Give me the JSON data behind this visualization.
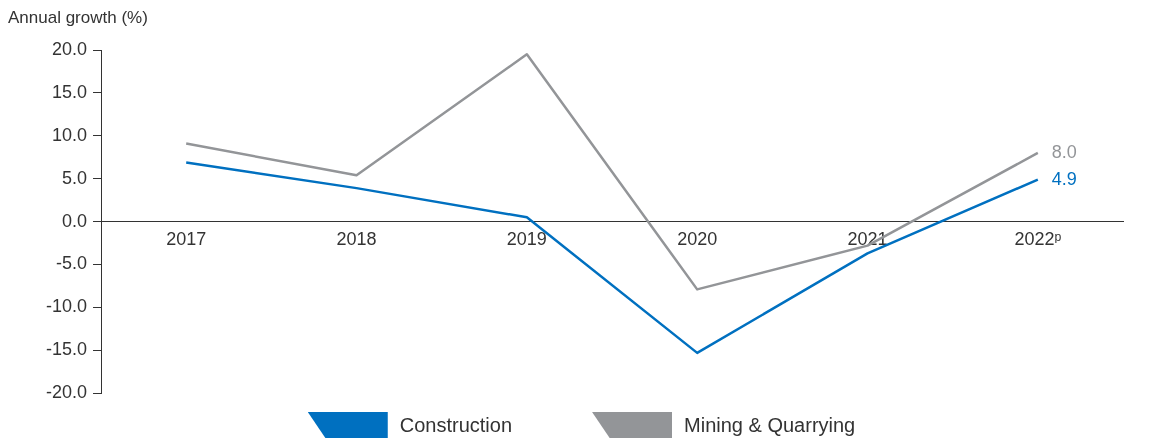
{
  "chart_data": {
    "type": "line",
    "ylabel": "Annual growth (%)",
    "categories": [
      "2017",
      "2018",
      "2019",
      "2020",
      "2021",
      "2022ᵖ"
    ],
    "series": [
      {
        "name": "Construction",
        "color": "#0070c0",
        "values": [
          6.9,
          3.9,
          0.5,
          -15.3,
          -3.7,
          4.9
        ],
        "value_labels": [
          null,
          null,
          null,
          null,
          null,
          "4.9"
        ]
      },
      {
        "name": "Mining & Quarrying",
        "color": "#939598",
        "values": [
          9.1,
          5.4,
          19.5,
          -7.9,
          -2.8,
          8.0
        ],
        "value_labels": [
          null,
          null,
          null,
          null,
          null,
          "8.0"
        ]
      }
    ],
    "ylim": [
      -20,
      20
    ],
    "yticks": [
      {
        "value": -20,
        "label": "-20.0"
      },
      {
        "value": -15,
        "label": "-15.0"
      },
      {
        "value": -10,
        "label": "-10.0"
      },
      {
        "value": -5,
        "label": "-5.0"
      },
      {
        "value": 0,
        "label": "0.0"
      },
      {
        "value": 5,
        "label": "5.0"
      },
      {
        "value": 10,
        "label": "10.0"
      },
      {
        "value": 15,
        "label": "15.0"
      },
      {
        "value": 20,
        "label": "20.0"
      }
    ],
    "grid": false,
    "legend": "bottom",
    "marker": "none",
    "line_style": "solid"
  }
}
